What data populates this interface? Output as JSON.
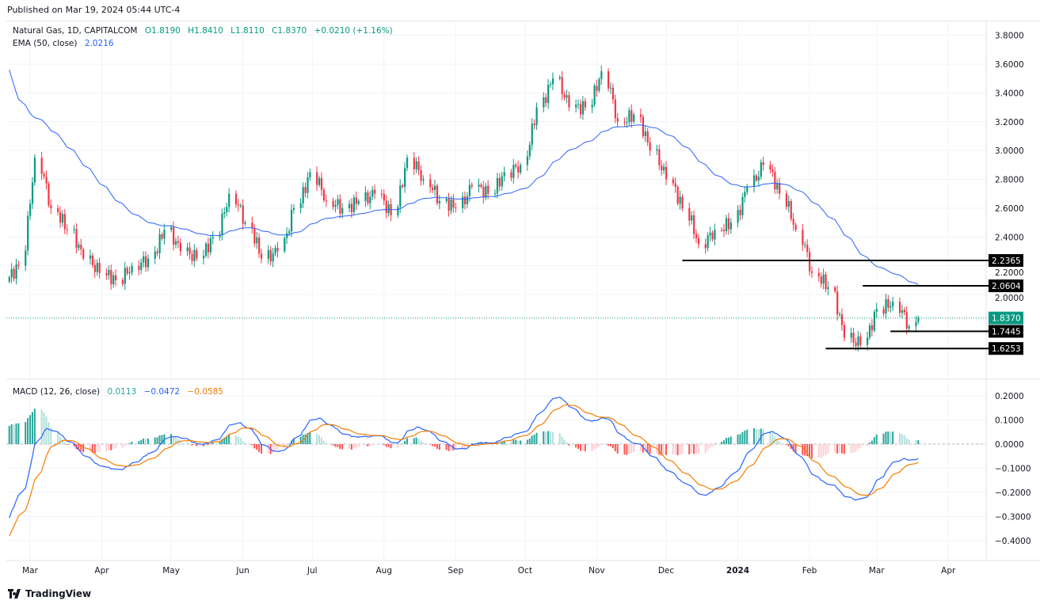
{
  "published": "Published on  Mar 19, 2024 05:44 UTC-4",
  "legend": {
    "symbol": "Natural Gas, 1D, CAPITALCOM",
    "o": "O1.8190",
    "h": "H1.8410",
    "l": "L1.8110",
    "c": "C1.8370",
    "change": "+0.0210 (+1.16%)",
    "ema_label": "EMA (50, close)",
    "ema_value": "2.0216",
    "macd_label": "MACD (12, 26, close)",
    "macd_hist": "0.0113",
    "macd_line": "−0.0472",
    "macd_signal": "−0.0585"
  },
  "footer": {
    "brand": "TradingView",
    "icon": "tradingview-logo-icon"
  },
  "colors": {
    "up": "#089981",
    "down": "#f23645",
    "ema": "#2962ff",
    "signal": "#f57c00",
    "hist_up_strong": "#26a69a",
    "hist_up_weak": "#b2dfdb",
    "hist_down_strong": "#ff5252",
    "hist_down_weak": "#ffcdd2"
  },
  "chart_data": {
    "type": "candlestick",
    "price_ticks": [
      "3.8000",
      "3.6000",
      "3.4000",
      "3.2000",
      "3.0000",
      "2.8000",
      "2.6000",
      "2.4000",
      "2.2000",
      "2.0000"
    ],
    "macd_ticks": [
      "0.2000",
      "0.1000",
      "0.0000",
      "−0.1000",
      "−0.2000",
      "−0.3000",
      "−0.4000"
    ],
    "time_ticks": [
      "Mar",
      "Apr",
      "May",
      "Jun",
      "Jul",
      "Aug",
      "Sep",
      "Oct",
      "Nov",
      "Dec",
      "2024",
      "Feb",
      "Mar",
      "Apr"
    ],
    "ylim": [
      1.5,
      3.85
    ],
    "weekly_close": [
      [
        "2023-02-20",
        2.2
      ],
      [
        "2023-02-27",
        2.95
      ],
      [
        "2023-03-06",
        2.6
      ],
      [
        "2023-03-13",
        2.45
      ],
      [
        "2023-03-20",
        2.25
      ],
      [
        "2023-03-27",
        2.15
      ],
      [
        "2023-04-03",
        2.1
      ],
      [
        "2023-04-10",
        2.2
      ],
      [
        "2023-04-17",
        2.25
      ],
      [
        "2023-04-24",
        2.45
      ],
      [
        "2023-05-01",
        2.3
      ],
      [
        "2023-05-08",
        2.25
      ],
      [
        "2023-05-15",
        2.4
      ],
      [
        "2023-05-22",
        2.7
      ],
      [
        "2023-05-29",
        2.5
      ],
      [
        "2023-06-05",
        2.25
      ],
      [
        "2023-06-12",
        2.3
      ],
      [
        "2023-06-19",
        2.6
      ],
      [
        "2023-06-26",
        2.85
      ],
      [
        "2023-07-03",
        2.65
      ],
      [
        "2023-07-10",
        2.6
      ],
      [
        "2023-07-17",
        2.65
      ],
      [
        "2023-07-24",
        2.7
      ],
      [
        "2023-07-31",
        2.55
      ],
      [
        "2023-08-07",
        2.95
      ],
      [
        "2023-08-14",
        2.8
      ],
      [
        "2023-08-21",
        2.65
      ],
      [
        "2023-08-28",
        2.6
      ],
      [
        "2023-09-04",
        2.75
      ],
      [
        "2023-09-11",
        2.7
      ],
      [
        "2023-09-18",
        2.85
      ],
      [
        "2023-09-25",
        2.9
      ],
      [
        "2023-10-02",
        3.3
      ],
      [
        "2023-10-09",
        3.5
      ],
      [
        "2023-10-16",
        3.3
      ],
      [
        "2023-10-23",
        3.3
      ],
      [
        "2023-10-30",
        3.55
      ],
      [
        "2023-11-06",
        3.2
      ],
      [
        "2023-11-13",
        3.25
      ],
      [
        "2023-11-20",
        3.0
      ],
      [
        "2023-11-27",
        2.8
      ],
      [
        "2023-12-04",
        2.6
      ],
      [
        "2023-12-11",
        2.35
      ],
      [
        "2023-12-18",
        2.45
      ],
      [
        "2023-12-25",
        2.5
      ],
      [
        "2024-01-01",
        2.75
      ],
      [
        "2024-01-08",
        2.9
      ],
      [
        "2024-01-15",
        2.7
      ],
      [
        "2024-01-22",
        2.45
      ],
      [
        "2024-01-29",
        2.15
      ],
      [
        "2024-02-05",
        2.05
      ],
      [
        "2024-02-12",
        1.7
      ],
      [
        "2024-02-19",
        1.65
      ],
      [
        "2024-02-26",
        1.9
      ],
      [
        "2024-03-04",
        1.95
      ],
      [
        "2024-03-11",
        1.78
      ],
      [
        "2024-03-18",
        1.837
      ]
    ],
    "ema50_first": 3.62,
    "macd_first": -0.33,
    "signal_first": -0.4,
    "last_price": "1.8370",
    "levels": [
      {
        "value": 2.2365,
        "label": "2.2365",
        "from": "2023-12-08"
      },
      {
        "value": 2.0604,
        "label": "2.0604",
        "from": "2024-02-24"
      },
      {
        "value": 1.7445,
        "label": "1.7445",
        "from": "2024-03-07"
      },
      {
        "value": 1.6253,
        "label": "1.6253",
        "from": "2024-02-08"
      }
    ]
  }
}
